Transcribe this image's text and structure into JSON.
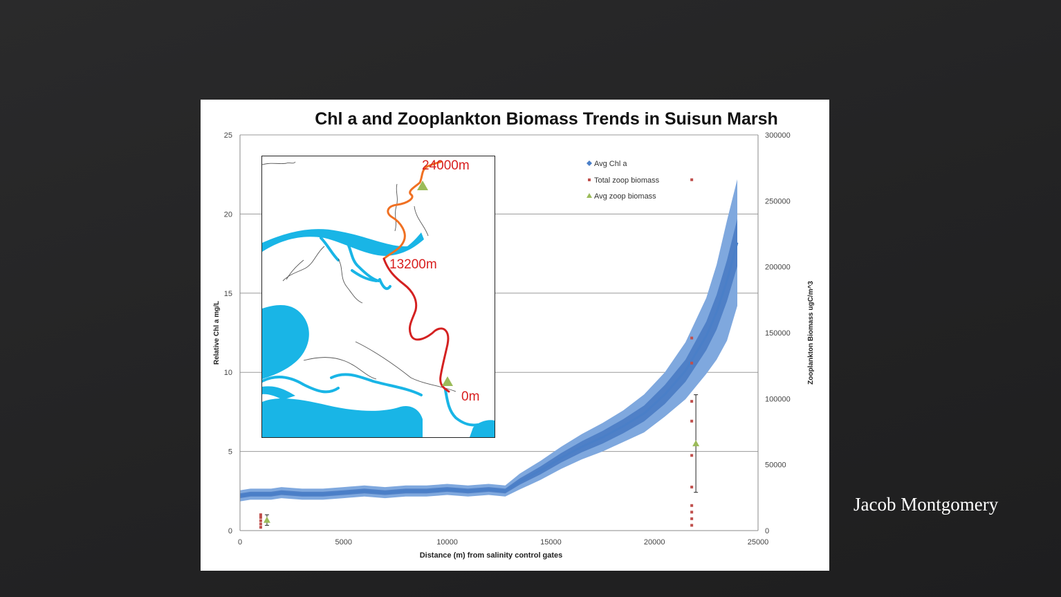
{
  "slide": {
    "author": "Jacob Montgomery"
  },
  "colors": {
    "background": "#232324",
    "chl_line": "#4a7fc8",
    "chl_band_outer": "#7fa8de",
    "chl_band_inner": "#4f80c7",
    "total_zoop": "#c0504d",
    "avg_zoop": "#9bbb59",
    "gridline": "#9a9a9a",
    "river_upper": "#f07022",
    "river_lower": "#d42121",
    "water": "#19b5e6"
  },
  "map_inset": {
    "labels": [
      "24000m",
      "13200m",
      "0m"
    ]
  },
  "chart_data": {
    "type": "line",
    "title": "Chl a and Zooplankton Biomass Trends in Suisun Marsh",
    "xlabel": "Distance (m) from salinity control gates",
    "ylabel": "Relative Chl a mg/L",
    "y2label": "Zooplankton Biomass ugC/m^3",
    "xlim": [
      0,
      25000
    ],
    "ylim": [
      0,
      25
    ],
    "y2lim": [
      0,
      300000
    ],
    "x_ticks": [
      "0",
      "5000",
      "10000",
      "15000",
      "20000",
      "25000"
    ],
    "y_ticks": [
      "0",
      "5",
      "10",
      "15",
      "20",
      "25"
    ],
    "y2_ticks": [
      "0",
      "50000",
      "100000",
      "150000",
      "200000",
      "250000",
      "300000"
    ],
    "grid": "horizontal",
    "legend_position": "top-right",
    "legend": [
      "Avg Chl a",
      "Total zoop biomass",
      "Avg zoop biomass"
    ],
    "series": [
      {
        "name": "Avg Chl a",
        "axis": "left",
        "x": [
          0,
          500,
          1000,
          1500,
          2000,
          3000,
          4000,
          5000,
          6000,
          7000,
          8000,
          9000,
          10000,
          11000,
          12000,
          12800,
          13500,
          14500,
          15500,
          16500,
          17500,
          18500,
          19500,
          20500,
          21500,
          22500,
          23000,
          23500,
          24000
        ],
        "y": [
          2.2,
          2.3,
          2.3,
          2.3,
          2.4,
          2.3,
          2.3,
          2.4,
          2.5,
          2.4,
          2.5,
          2.5,
          2.6,
          2.5,
          2.6,
          2.5,
          3.1,
          3.8,
          4.6,
          5.3,
          5.9,
          6.6,
          7.4,
          8.6,
          10.1,
          12.3,
          13.8,
          15.8,
          18.2
        ],
        "band_outer": [
          0.35,
          0.35,
          0.35,
          0.35,
          0.35,
          0.35,
          0.35,
          0.35,
          0.35,
          0.35,
          0.35,
          0.35,
          0.35,
          0.35,
          0.35,
          0.35,
          0.5,
          0.6,
          0.7,
          0.8,
          0.9,
          1.0,
          1.2,
          1.4,
          1.8,
          2.4,
          3.0,
          3.8,
          4.0
        ],
        "band_inner": [
          0.15,
          0.15,
          0.15,
          0.15,
          0.15,
          0.15,
          0.15,
          0.15,
          0.15,
          0.15,
          0.15,
          0.15,
          0.15,
          0.15,
          0.15,
          0.15,
          0.2,
          0.25,
          0.3,
          0.35,
          0.4,
          0.45,
          0.5,
          0.6,
          0.7,
          0.9,
          1.1,
          1.3,
          1.5
        ]
      },
      {
        "name": "Total zoop biomass",
        "axis": "right",
        "points": [
          [
            1000,
            2500
          ],
          [
            1000,
            5000
          ],
          [
            1000,
            7500
          ],
          [
            1000,
            10000
          ],
          [
            1000,
            12000
          ],
          [
            21800,
            4000
          ],
          [
            21800,
            9000
          ],
          [
            21800,
            14000
          ],
          [
            21800,
            19000
          ],
          [
            21800,
            33000
          ],
          [
            21800,
            57000
          ],
          [
            21800,
            83000
          ],
          [
            21800,
            98000
          ],
          [
            21800,
            127000
          ],
          [
            21800,
            146000
          ],
          [
            21800,
            266000
          ]
        ]
      },
      {
        "name": "Avg zoop biomass",
        "axis": "right",
        "points": [
          [
            1300,
            8000
          ],
          [
            22000,
            66000
          ]
        ],
        "error_bars": [
          [
            4000,
            12000
          ],
          [
            29000,
            103000
          ]
        ]
      }
    ]
  }
}
